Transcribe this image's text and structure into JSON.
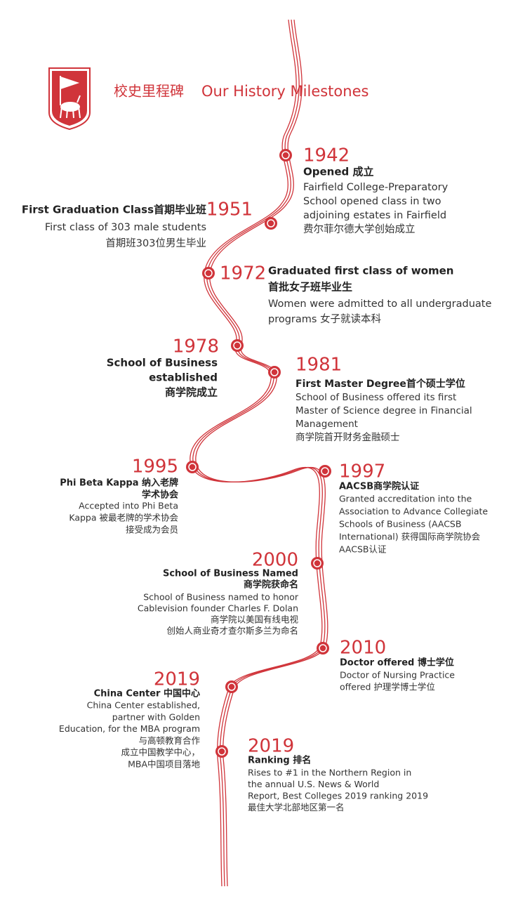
{
  "header": {
    "title_cn": "校史里程碑",
    "title_en": "Our History Milestones"
  },
  "milestones": [
    {
      "year": "1942",
      "title": [
        "Opened 成立"
      ],
      "text": [
        "Fairfield College-Preparatory",
        "School opened class in two",
        "adjoining estates in Fairfield",
        "费尔菲尔德大学创始成立"
      ]
    },
    {
      "year": "1951",
      "title": [
        "First Graduation Class首期毕业班"
      ],
      "text": [
        "First class of 303 male students",
        "首期班303位男生毕业"
      ]
    },
    {
      "year": "1972",
      "title": [
        "Graduated first class of women",
        "首批女子班毕业生"
      ],
      "text": [
        "Women were admitted to all undergraduate",
        "programs 女子就读本科"
      ]
    },
    {
      "year": "1978",
      "title": [
        "School of Business",
        "established",
        "商学院成立"
      ],
      "text": []
    },
    {
      "year": "1981",
      "title": [
        "First Master Degree首个硕士学位"
      ],
      "text": [
        "School of Business offered its first",
        "Master of Science degree in Financial",
        "Management",
        "商学院首开财务金融硕士"
      ]
    },
    {
      "year": "1995",
      "title": [
        "Phi Beta Kappa 纳入老牌",
        "学术协会"
      ],
      "text": [
        "Accepted into Phi Beta",
        "Kappa 被最老牌的学术协会",
        "接受成为会员"
      ]
    },
    {
      "year": "1997",
      "title": [
        "AACSB商学院认证"
      ],
      "text": [
        "Granted accreditation into the",
        "Association to Advance Collegiate",
        "Schools of Business (AACSB",
        "International) 获得国际商学院协会",
        "AACSB认证"
      ]
    },
    {
      "year": "2000",
      "title": [
        "School of Business Named",
        "商学院获命名"
      ],
      "text": [
        "School of Business named to honor",
        "Cablevision founder Charles F. Dolan",
        "商学院以美国有线电视",
        "创始人商业奇才查尔斯多兰为命名"
      ]
    },
    {
      "year": "2010",
      "title": [
        "Doctor offered 博士学位"
      ],
      "text": [
        "Doctor of Nursing Practice",
        "offered 护理学博士学位"
      ]
    },
    {
      "year": "2019",
      "title": [
        "China Center 中国中心"
      ],
      "text": [
        "China Center established,",
        "partner with Golden",
        "Education, for the MBA program",
        "与高顿教育合作",
        "成立中国教学中心，",
        "MBA中国项目落地"
      ]
    },
    {
      "year": "2019",
      "title": [
        "Ranking 排名"
      ],
      "text": [
        "Rises to #1 in the Northern Region in",
        "the annual U.S. News & World",
        "Report, Best Colleges 2019 ranking 2019",
        "最佳大学北部地区第一名"
      ]
    }
  ]
}
